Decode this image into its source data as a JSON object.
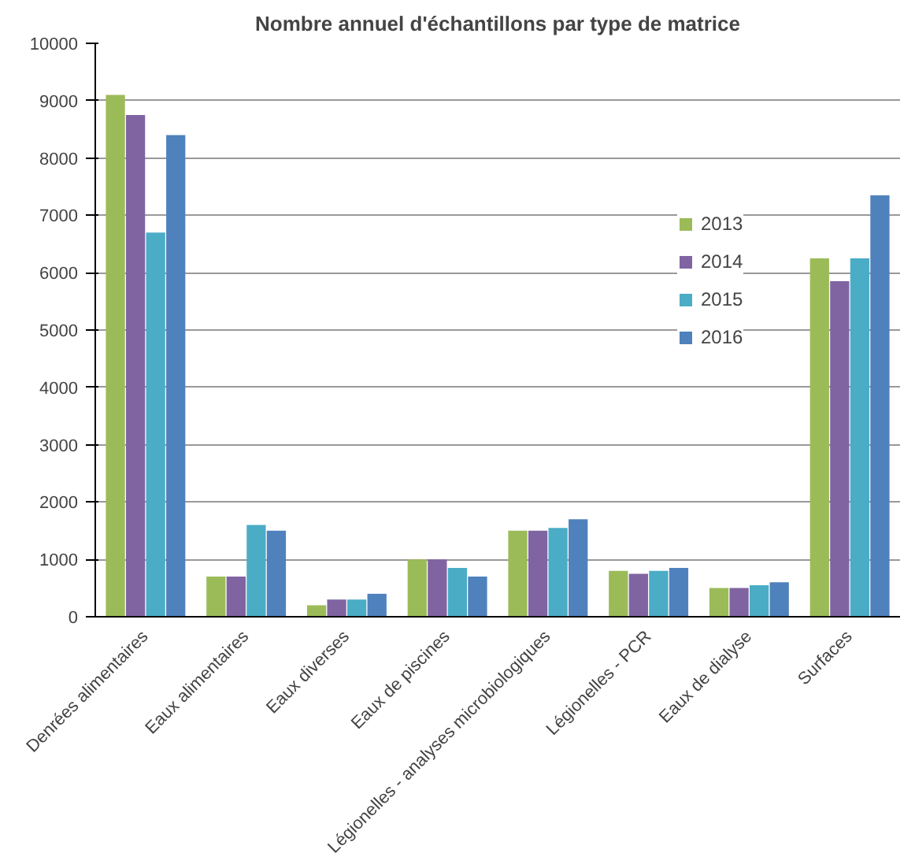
{
  "chart_data": {
    "type": "bar",
    "title": "Nombre annuel d'échantillons par type de matrice",
    "categories": [
      "Denrées alimentaires",
      "Eaux alimentaires",
      "Eaux diverses",
      "Eaux de piscines",
      "Légionelles - analyses microbiologiques",
      "Légionelles - PCR",
      "Eaux de dialyse",
      "Surfaces"
    ],
    "series": [
      {
        "name": "2013",
        "color": "#9bbb59",
        "values": [
          9100,
          700,
          200,
          1000,
          1500,
          800,
          500,
          6250
        ]
      },
      {
        "name": "2014",
        "color": "#8064a2",
        "values": [
          8750,
          700,
          300,
          1000,
          1500,
          750,
          500,
          5850
        ]
      },
      {
        "name": "2015",
        "color": "#4bacc6",
        "values": [
          6700,
          1600,
          300,
          850,
          1550,
          800,
          550,
          6250
        ]
      },
      {
        "name": "2016",
        "color": "#4f81bd",
        "values": [
          8400,
          1500,
          400,
          700,
          1700,
          850,
          600,
          7350
        ]
      }
    ],
    "ylim": [
      0,
      10000
    ],
    "yticks": [
      0,
      1000,
      2000,
      3000,
      4000,
      5000,
      6000,
      7000,
      8000,
      9000,
      10000
    ],
    "grid": "y",
    "legend": "right"
  }
}
